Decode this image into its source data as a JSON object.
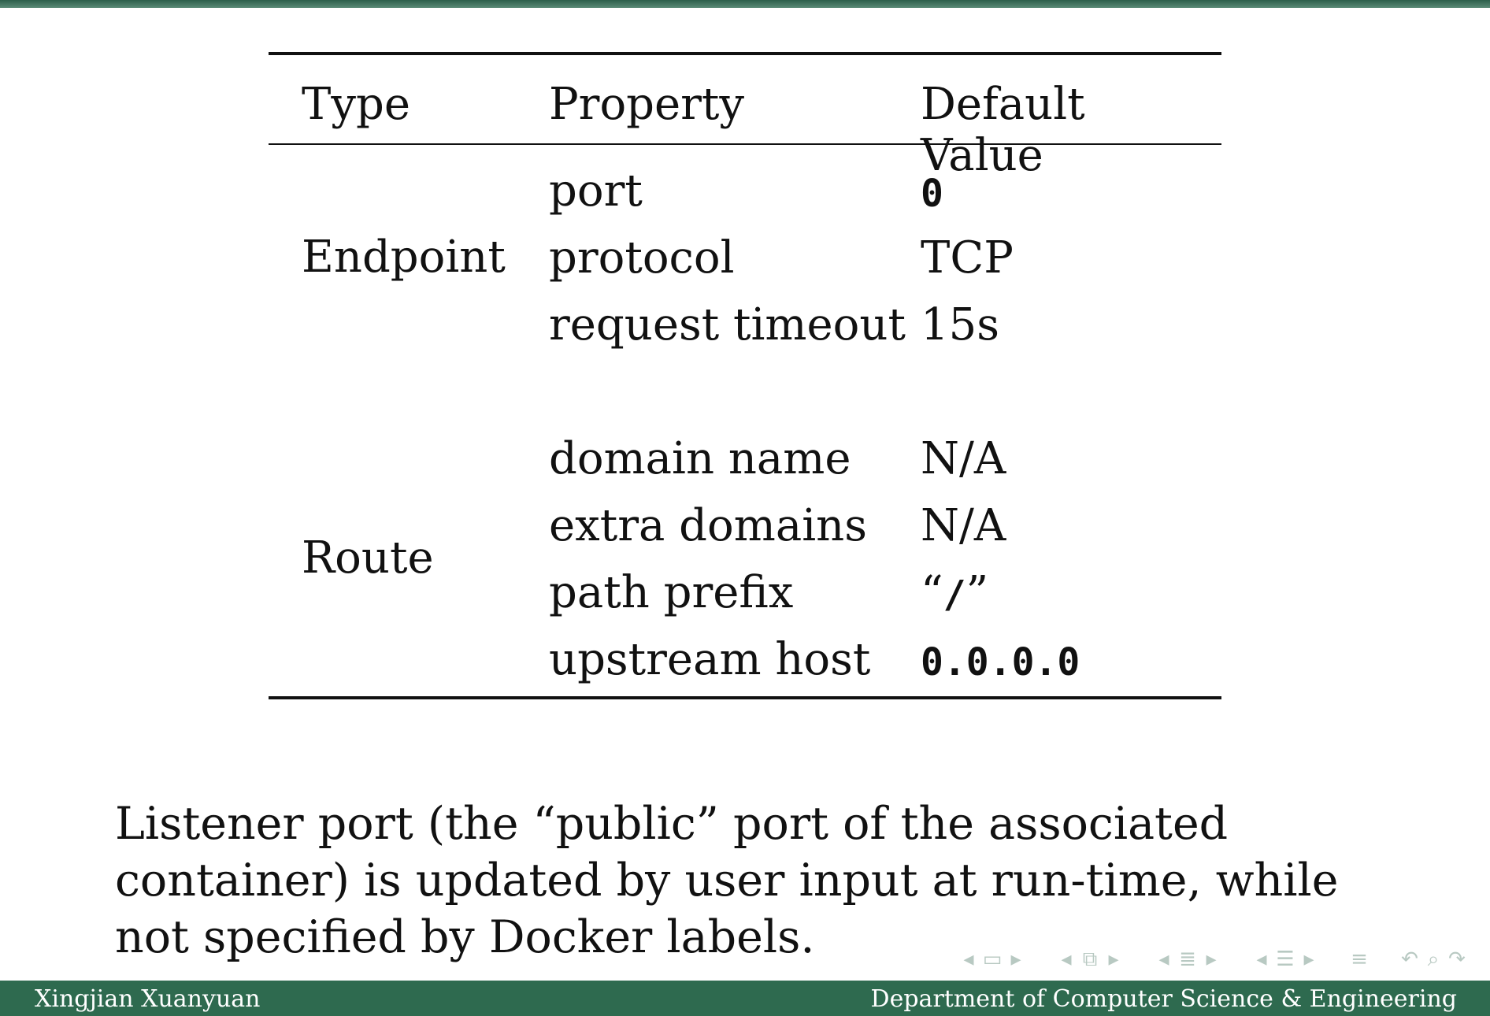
{
  "table": {
    "headers": {
      "type": "Type",
      "property": "Property",
      "default_value": "Default Value"
    },
    "groups": [
      {
        "type": "Endpoint",
        "rows": [
          {
            "property": "port",
            "value": "0",
            "mono": true
          },
          {
            "property": "protocol",
            "value": "TCP",
            "mono": false
          },
          {
            "property": "request timeout",
            "value": "15s",
            "mono": false
          }
        ]
      },
      {
        "type": "Route",
        "rows": [
          {
            "property": "domain name",
            "value": "N/A",
            "mono": false
          },
          {
            "property": "extra domains",
            "value": "N/A",
            "mono": false
          },
          {
            "property": "path prefix",
            "value_prefix": "“",
            "value_mono": "/",
            "value_suffix": "”"
          },
          {
            "property": "upstream host",
            "value": "0.0.0.0",
            "mono": true
          }
        ]
      }
    ]
  },
  "caption": "Listener port (the “public” port of the associated container) is updated by user input at run-time, while not specified by Docker labels.",
  "navigation": {
    "icons": [
      "nav-left-arrow",
      "frame-icon",
      "nav-right-arrow",
      "nav-left-arrow",
      "subsection-icon",
      "nav-right-arrow",
      "nav-left-arrow",
      "section-icon",
      "nav-right-arrow",
      "nav-left-arrow",
      "presentation-icon",
      "nav-right-arrow",
      "align-icon",
      "undo-icon",
      "search-icon",
      "redo-icon"
    ]
  },
  "footer": {
    "author": "Xingjian Xuanyuan",
    "department": "Department of Computer Science & Engineering"
  },
  "colors": {
    "footer_bg": "#2e6a4f",
    "nav_icon": "#b8c9c2"
  }
}
